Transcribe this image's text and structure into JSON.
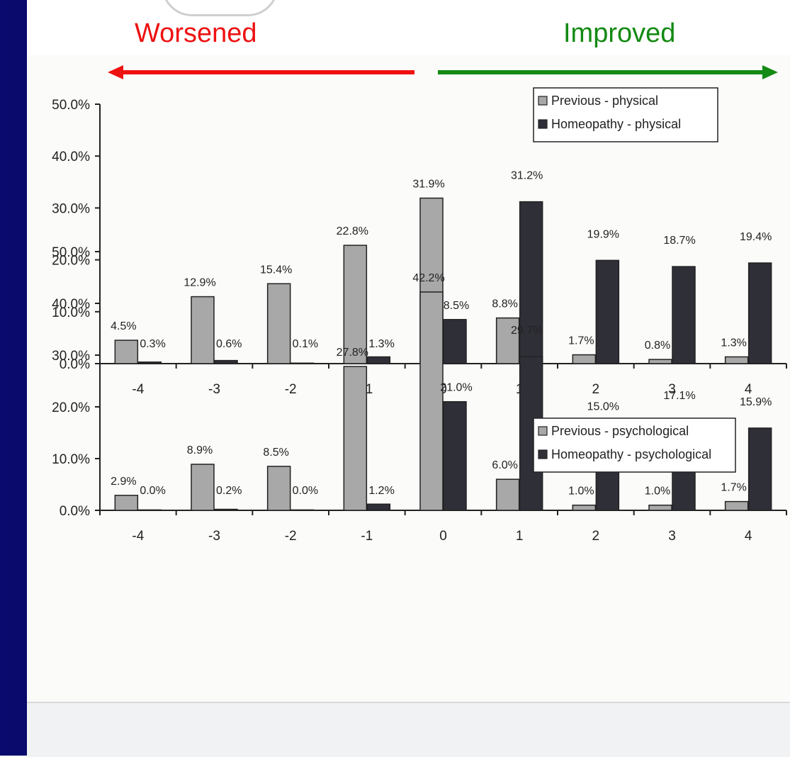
{
  "header": {
    "worsened_label": "Worsened",
    "improved_label": "Improved",
    "worsened_color": "#ee1111",
    "improved_color": "#138a13"
  },
  "chart_data": [
    {
      "type": "bar",
      "categories": [
        "-4",
        "-3",
        "-2",
        "-1",
        "0",
        "1",
        "2",
        "3",
        "4"
      ],
      "series": [
        {
          "name": "Previous - physical",
          "values": [
            4.5,
            12.9,
            15.4,
            22.8,
            31.9,
            8.8,
            1.7,
            0.8,
            1.3
          ],
          "color": "#a8a8a8"
        },
        {
          "name": "Homeopathy - physical",
          "values": [
            0.3,
            0.6,
            0.1,
            1.3,
            8.5,
            31.2,
            19.9,
            18.7,
            19.4
          ],
          "color": "#2f2f38"
        }
      ],
      "ylim": [
        0,
        50
      ],
      "yticks": [
        "0.0%",
        "10.0%",
        "20.0%",
        "30.0%",
        "40.0%",
        "50.0%"
      ],
      "value_suffix": "%",
      "grid": false,
      "legend_position": "top-right"
    },
    {
      "type": "bar",
      "categories": [
        "-4",
        "-3",
        "-2",
        "-1",
        "0",
        "1",
        "2",
        "3",
        "4"
      ],
      "series": [
        {
          "name": "Previous - psychological",
          "values": [
            2.9,
            8.9,
            8.5,
            27.8,
            42.2,
            6.0,
            1.0,
            1.0,
            1.7
          ],
          "color": "#a8a8a8"
        },
        {
          "name": "Homeopathy - psychological",
          "values": [
            0.0,
            0.2,
            0.0,
            1.2,
            21.0,
            29.7,
            15.0,
            17.1,
            15.9
          ],
          "color": "#2f2f38"
        }
      ],
      "ylim": [
        0,
        50
      ],
      "yticks": [
        "0.0%",
        "10.0%",
        "20.0%",
        "30.0%",
        "40.0%",
        "50.0%"
      ],
      "value_suffix": "%",
      "grid": false,
      "legend_position": "top-right"
    }
  ]
}
